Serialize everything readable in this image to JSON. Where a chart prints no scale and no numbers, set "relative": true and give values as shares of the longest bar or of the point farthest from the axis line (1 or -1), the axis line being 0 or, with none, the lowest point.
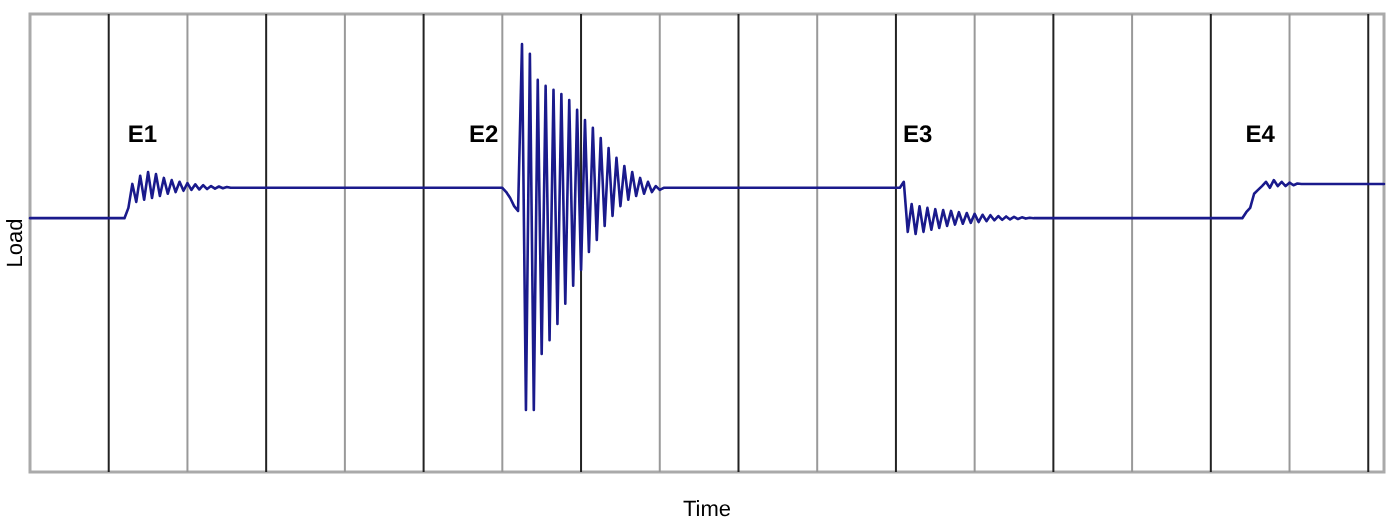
{
  "chart_data": {
    "type": "line",
    "relative": true,
    "xlabel": "Time",
    "ylabel": "Load",
    "grid": "x",
    "line_style": "solid",
    "annotations": [
      "E1",
      "E2",
      "E3",
      "E4"
    ],
    "categories": [
      null,
      null,
      null,
      null,
      null,
      null,
      null,
      null,
      null,
      null,
      null,
      null,
      null,
      null,
      null,
      null,
      null,
      null,
      null,
      null,
      null,
      null,
      null,
      null,
      null,
      null,
      null,
      null,
      null,
      null,
      null,
      null,
      null,
      null,
      null,
      null,
      null,
      null,
      null,
      null,
      null,
      null,
      null,
      null,
      null,
      null,
      null,
      null,
      null,
      null,
      null,
      null,
      null,
      null,
      null,
      null,
      null,
      null,
      null,
      null,
      null,
      null,
      null,
      null,
      null,
      null,
      null,
      null,
      null,
      null,
      null,
      null,
      null,
      null,
      null,
      null,
      null,
      null,
      null,
      null,
      null,
      null,
      null,
      null,
      null,
      null,
      null,
      null,
      null,
      null,
      null,
      null,
      null,
      null,
      null,
      null,
      null,
      null,
      null,
      null,
      null,
      null,
      null,
      null,
      null,
      null,
      null,
      null,
      null,
      null,
      null,
      null,
      null,
      null,
      null,
      null,
      null,
      null,
      null,
      null,
      null,
      null,
      null,
      null,
      null,
      null,
      null,
      null,
      null,
      null,
      null,
      null,
      null,
      null,
      null,
      null,
      null,
      null,
      null,
      null,
      null,
      null,
      null,
      null,
      null,
      null,
      null,
      null,
      null,
      null,
      null,
      null,
      null,
      null,
      null,
      null,
      null,
      null,
      null,
      null,
      null,
      null,
      null,
      null,
      null,
      null,
      null,
      null,
      null,
      null,
      null,
      null,
      null,
      null,
      null,
      null,
      null,
      null,
      null,
      null,
      null,
      null,
      null,
      null,
      null,
      null,
      null,
      null,
      null,
      null,
      null,
      null,
      null,
      null,
      null,
      null,
      null,
      null,
      null,
      null,
      null,
      null,
      null,
      null,
      null,
      null,
      null,
      null,
      null,
      null,
      null,
      null,
      null,
      null,
      null,
      null,
      null,
      null,
      null,
      null,
      null,
      null,
      null,
      null,
      null,
      null,
      null,
      null,
      null,
      null,
      null,
      null,
      null,
      null,
      null,
      null,
      null,
      null,
      null,
      null,
      null,
      null,
      null,
      null,
      null,
      null,
      null,
      null,
      null,
      null,
      null,
      null,
      null,
      null,
      null,
      null,
      null,
      null,
      null,
      null,
      null,
      null,
      null,
      null,
      null,
      null,
      null,
      null,
      null,
      null,
      null,
      null,
      null,
      null,
      null,
      null,
      null,
      null,
      null,
      null,
      null,
      null,
      null,
      null,
      null,
      null,
      null,
      null,
      null,
      null,
      null,
      null,
      null,
      null,
      null,
      null,
      null,
      null,
      null,
      null,
      null,
      null,
      null,
      null,
      null,
      null,
      null,
      null,
      null,
      null,
      null,
      null,
      null,
      null,
      null,
      null,
      null,
      null,
      null,
      null,
      null,
      null,
      null,
      null,
      null,
      null,
      null,
      null,
      null,
      null,
      null,
      null,
      null,
      null,
      null,
      null,
      null,
      null,
      null,
      null,
      null,
      null,
      null,
      null,
      null
    ],
    "series": [
      {
        "color": "#1a1a8c",
        "values": [
          0.593,
          0.593,
          0.593,
          0.593,
          0.593,
          0.593,
          0.593,
          0.593,
          0.593,
          0.593,
          0.593,
          0.593,
          0.593,
          0.593,
          0.593,
          0.593,
          0.593,
          0.593,
          0.593,
          0.593,
          0.593,
          0.593,
          0.593,
          0.593,
          0.593,
          0.617,
          0.673,
          0.631,
          0.692,
          0.636,
          0.701,
          0.64,
          0.696,
          0.645,
          0.687,
          0.65,
          0.682,
          0.654,
          0.678,
          0.657,
          0.675,
          0.659,
          0.672,
          0.66,
          0.67,
          0.661,
          0.668,
          0.662,
          0.667,
          0.663,
          0.666,
          0.664,
          0.664,
          0.664,
          0.664,
          0.664,
          0.664,
          0.664,
          0.664,
          0.664,
          0.664,
          0.664,
          0.664,
          0.664,
          0.664,
          0.664,
          0.664,
          0.664,
          0.664,
          0.664,
          0.664,
          0.664,
          0.664,
          0.664,
          0.664,
          0.664,
          0.664,
          0.664,
          0.664,
          0.664,
          0.664,
          0.664,
          0.664,
          0.664,
          0.664,
          0.664,
          0.664,
          0.664,
          0.664,
          0.664,
          0.664,
          0.664,
          0.664,
          0.664,
          0.664,
          0.664,
          0.664,
          0.664,
          0.664,
          0.664,
          0.664,
          0.664,
          0.664,
          0.664,
          0.664,
          0.664,
          0.664,
          0.664,
          0.664,
          0.664,
          0.664,
          0.664,
          0.664,
          0.664,
          0.664,
          0.664,
          0.664,
          0.664,
          0.664,
          0.664,
          0.664,
          0.654,
          0.64,
          0.621,
          0.61,
          1.0,
          0.145,
          0.977,
          0.145,
          0.916,
          0.276,
          0.902,
          0.308,
          0.893,
          0.346,
          0.883,
          0.393,
          0.869,
          0.435,
          0.846,
          0.472,
          0.822,
          0.514,
          0.804,
          0.542,
          0.78,
          0.575,
          0.757,
          0.598,
          0.734,
          0.621,
          0.715,
          0.636,
          0.701,
          0.645,
          0.687,
          0.65,
          0.678,
          0.654,
          0.668,
          0.659,
          0.664,
          0.664,
          0.664,
          0.664,
          0.664,
          0.664,
          0.664,
          0.664,
          0.664,
          0.664,
          0.664,
          0.664,
          0.664,
          0.664,
          0.664,
          0.664,
          0.664,
          0.664,
          0.664,
          0.664,
          0.664,
          0.664,
          0.664,
          0.664,
          0.664,
          0.664,
          0.664,
          0.664,
          0.664,
          0.664,
          0.664,
          0.664,
          0.664,
          0.664,
          0.664,
          0.664,
          0.664,
          0.664,
          0.664,
          0.664,
          0.664,
          0.664,
          0.664,
          0.664,
          0.664,
          0.664,
          0.664,
          0.664,
          0.664,
          0.664,
          0.664,
          0.664,
          0.664,
          0.664,
          0.664,
          0.664,
          0.664,
          0.664,
          0.664,
          0.664,
          0.664,
          0.678,
          0.561,
          0.626,
          0.556,
          0.621,
          0.561,
          0.617,
          0.566,
          0.614,
          0.57,
          0.612,
          0.575,
          0.61,
          0.578,
          0.607,
          0.58,
          0.605,
          0.582,
          0.603,
          0.584,
          0.601,
          0.586,
          0.6,
          0.588,
          0.598,
          0.589,
          0.597,
          0.59,
          0.596,
          0.591,
          0.595,
          0.592,
          0.594,
          0.593,
          0.593,
          0.593,
          0.593,
          0.593,
          0.593,
          0.593,
          0.593,
          0.593,
          0.593,
          0.593,
          0.593,
          0.593,
          0.593,
          0.593,
          0.593,
          0.593,
          0.593,
          0.593,
          0.593,
          0.593,
          0.593,
          0.593,
          0.593,
          0.593,
          0.593,
          0.593,
          0.593,
          0.593,
          0.593,
          0.593,
          0.593,
          0.593,
          0.593,
          0.593,
          0.593,
          0.593,
          0.593,
          0.593,
          0.593,
          0.593,
          0.593,
          0.593,
          0.593,
          0.593,
          0.593,
          0.593,
          0.593,
          0.593,
          0.593,
          0.593,
          0.593,
          0.593,
          0.593,
          0.607,
          0.617,
          0.65,
          0.659,
          0.668,
          0.678,
          0.664,
          0.682,
          0.668,
          0.678,
          0.668,
          0.676,
          0.67,
          0.674,
          0.673,
          0.673,
          0.673,
          0.673,
          0.673,
          0.673,
          0.673,
          0.673,
          0.673,
          0.673,
          0.673,
          0.673,
          0.673,
          0.673,
          0.673,
          0.673,
          0.673,
          0.673,
          0.673,
          0.673,
          0.673,
          0.673
        ]
      }
    ]
  }
}
